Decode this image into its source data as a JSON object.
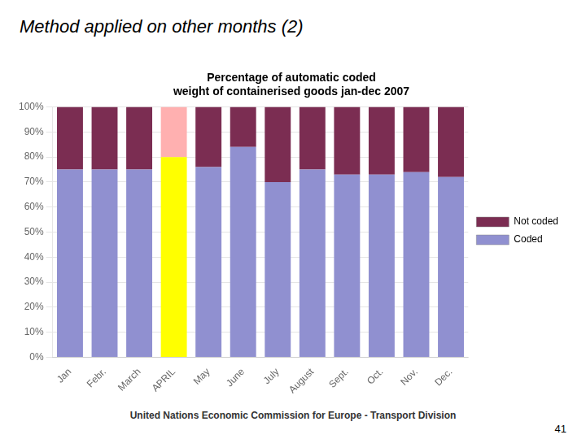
{
  "chart_data": {
    "type": "bar",
    "title": "Percentage of automatic coded\nweight of containerised goods jan-dec 2007",
    "annotations": [
      "Method applied on other months (2)",
      "United Nations Economic Commission for Europe - Transport Division",
      "41"
    ],
    "categories": [
      "Jan",
      "Febr.",
      "March",
      "APRIL",
      "May",
      "June",
      "July",
      "August",
      "Sept.",
      "Oct.",
      "Nov.",
      "Dec."
    ],
    "series": [
      {
        "name": "Coded",
        "values": [
          75,
          75,
          75,
          80,
          76,
          84,
          70,
          75,
          73,
          73,
          74,
          72
        ],
        "colors": [
          "#9090d0",
          "#9090d0",
          "#9090d0",
          "#ffff00",
          "#9090d0",
          "#9090d0",
          "#9090d0",
          "#9090d0",
          "#9090d0",
          "#9090d0",
          "#9090d0",
          "#9090d0"
        ]
      },
      {
        "name": "Not coded",
        "values": [
          25,
          25,
          25,
          20,
          24,
          16,
          30,
          25,
          27,
          27,
          26,
          28
        ],
        "colors": [
          "#7b2d52",
          "#7b2d52",
          "#7b2d52",
          "#ffb0b0",
          "#7b2d52",
          "#7b2d52",
          "#7b2d52",
          "#7b2d52",
          "#7b2d52",
          "#7b2d52",
          "#7b2d52",
          "#7b2d52"
        ]
      }
    ],
    "stacked": true,
    "ylim": [
      0,
      100
    ],
    "yticks": [
      {
        "value": 0,
        "label": "0%"
      },
      {
        "value": 10,
        "label": "10%"
      },
      {
        "value": 20,
        "label": "20%"
      },
      {
        "value": 30,
        "label": "30%"
      },
      {
        "value": 40,
        "label": "40%"
      },
      {
        "value": 50,
        "label": "50%"
      },
      {
        "value": 60,
        "label": "60%"
      },
      {
        "value": 70,
        "label": "70%"
      },
      {
        "value": 80,
        "label": "80%"
      },
      {
        "value": 90,
        "label": "90%"
      },
      {
        "value": 100,
        "label": "100%"
      }
    ],
    "grid": true,
    "legend": "right"
  }
}
